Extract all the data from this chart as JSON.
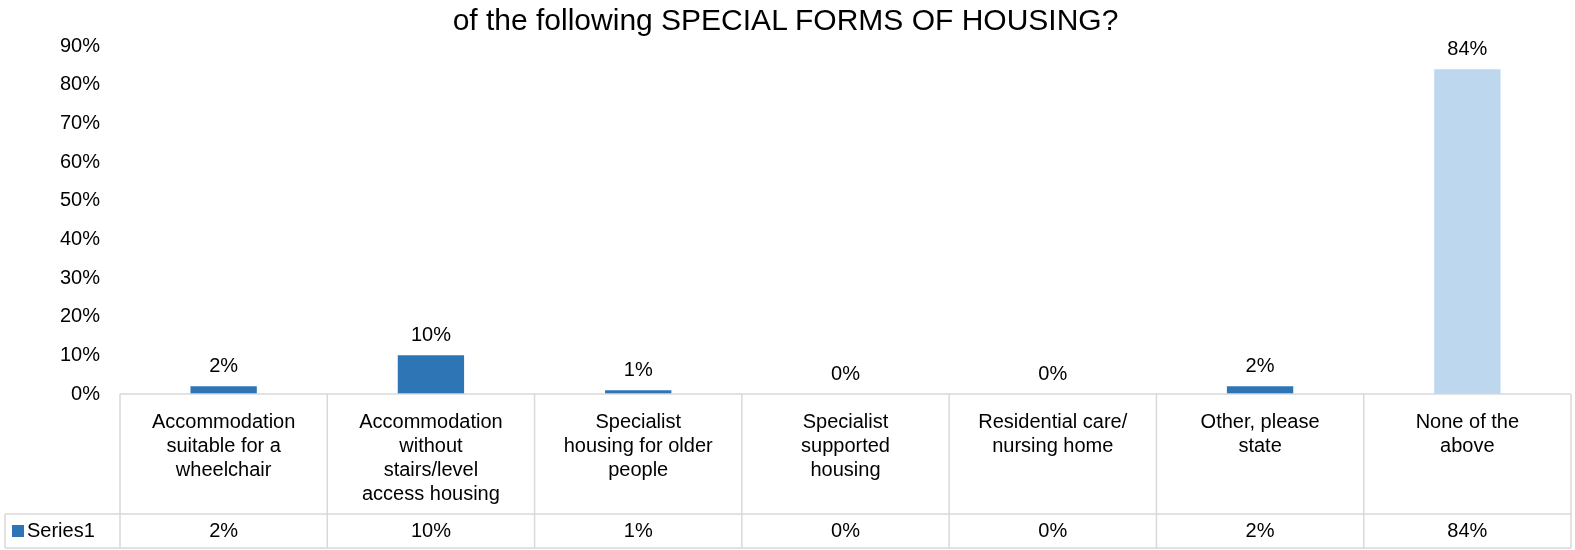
{
  "chart_data": {
    "type": "bar",
    "title": "of the following SPECIAL FORMS OF HOUSING?",
    "categories": [
      "Accommodation suitable for a wheelchair",
      "Accommodation without stairs/level access housing",
      "Specialist housing for older people",
      "Specialist supported housing",
      "Residential care/ nursing home",
      "Other, please state",
      "None of the above"
    ],
    "series": [
      {
        "name": "Series1",
        "color": "#2e75b6",
        "colors": [
          "#2e75b6",
          "#2e75b6",
          "#2e75b6",
          "#bdd7ee",
          "#2e75b6",
          "#2e75b6",
          "#bdd7ee"
        ],
        "values": [
          2,
          10,
          1,
          0,
          0,
          2,
          84
        ]
      }
    ],
    "value_labels": [
      "2%",
      "10%",
      "1%",
      "0%",
      "0%",
      "2%",
      "84%"
    ],
    "ylim": [
      0,
      90
    ],
    "yticks": [
      {
        "value": 0,
        "label": "0%"
      },
      {
        "value": 10,
        "label": "10%"
      },
      {
        "value": 20,
        "label": "20%"
      },
      {
        "value": 30,
        "label": "30%"
      },
      {
        "value": 40,
        "label": "40%"
      },
      {
        "value": 50,
        "label": "50%"
      },
      {
        "value": 60,
        "label": "60%"
      },
      {
        "value": 70,
        "label": "70%"
      },
      {
        "value": 80,
        "label": "80%"
      },
      {
        "value": 90,
        "label": "90%"
      }
    ],
    "legend": "bottom"
  }
}
